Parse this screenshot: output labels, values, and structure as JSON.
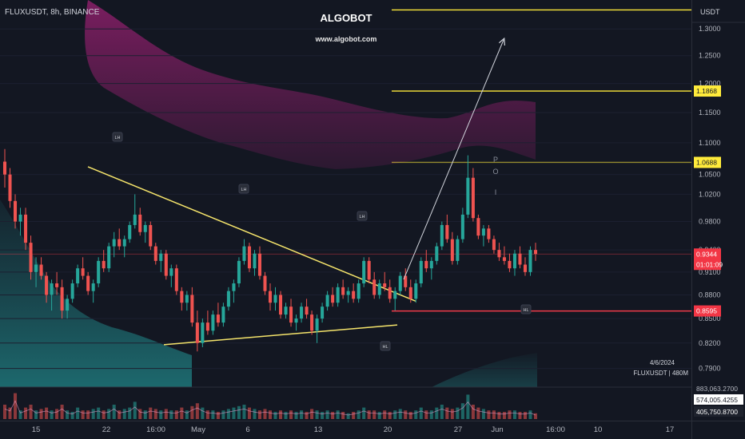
{
  "header": {
    "symbol_label": "FLUXUSDT, 8h, BINANCE",
    "brand_title": "ALGOBOT",
    "brand_url": "www.algobot.com",
    "currency": "USDT"
  },
  "colors": {
    "background": "#131722",
    "bull": "#26a69a",
    "bear": "#ef5350",
    "trendline": "#f5e46b",
    "resistance_line": "#ffe93b",
    "support_line": "#ef3b4a",
    "upper_band": "#8c1f6a",
    "lower_band": "#1f6f73",
    "projection_arrow": "#d1d4dc",
    "volume_ma": "#f7a6d8"
  },
  "chart_data": {
    "type": "candlestick",
    "timeframe": "8h",
    "yscale": "log",
    "ylim": [
      0.775,
      1.35
    ],
    "price_ticks": [
      "1.3000",
      "1.2500",
      "1.2000",
      "1.1500",
      "1.1000",
      "1.0500",
      "1.0200",
      "0.9800",
      "0.9400",
      "0.9100",
      "0.8800",
      "0.8500",
      "0.8200",
      "0.7900"
    ],
    "time_ticks": [
      "15",
      "22",
      "16:00",
      "May",
      "6",
      "13",
      "20",
      "27",
      "Jun",
      "16:00",
      "10",
      "17"
    ],
    "price_labels": [
      {
        "value": "1.1868",
        "style": "yellow"
      },
      {
        "value": "1.0688",
        "style": "yellow"
      },
      {
        "value": "0.9344",
        "style": "red"
      },
      {
        "value": "01:01:09",
        "style": "red"
      },
      {
        "value": "0.8595",
        "style": "red"
      }
    ],
    "horizontal_levels": [
      {
        "price": 1.3368,
        "color": "yellow"
      },
      {
        "price": 1.1868,
        "color": "yellow"
      },
      {
        "price": 1.0688,
        "color": "yellow"
      },
      {
        "price": 0.8595,
        "color": "red"
      },
      {
        "price": 0.9344,
        "color": "red"
      }
    ],
    "trendlines": [
      {
        "from": [
          0.0,
          1.062
        ],
        "to": [
          0.62,
          0.872
        ]
      },
      {
        "from": [
          0.16,
          0.818
        ],
        "to": [
          0.63,
          0.842
        ]
      }
    ],
    "pivot_markers": [
      "LH",
      "LH",
      "LH",
      "HL",
      "HL"
    ],
    "vertical_annotation": [
      "P",
      "O",
      "I"
    ],
    "date_stamp": "4/6/2024",
    "volume_label": "FLUXUSDT | 480M",
    "volume_labels": [
      "883,063.2700",
      "574,005.4255",
      "405,750.8700"
    ],
    "candles": [
      [
        1.07,
        1.09,
        1.03,
        1.05
      ],
      [
        1.05,
        1.06,
        1.0,
        1.01
      ],
      [
        1.01,
        1.02,
        0.97,
        0.98
      ],
      [
        0.98,
        1.0,
        0.96,
        0.99
      ],
      [
        0.99,
        1.0,
        0.94,
        0.95
      ],
      [
        0.95,
        0.96,
        0.9,
        0.91
      ],
      [
        0.91,
        0.93,
        0.89,
        0.92
      ],
      [
        0.92,
        0.93,
        0.9,
        0.905
      ],
      [
        0.905,
        0.91,
        0.87,
        0.88
      ],
      [
        0.88,
        0.9,
        0.86,
        0.895
      ],
      [
        0.895,
        0.91,
        0.88,
        0.89
      ],
      [
        0.89,
        0.9,
        0.85,
        0.86
      ],
      [
        0.86,
        0.88,
        0.85,
        0.875
      ],
      [
        0.875,
        0.9,
        0.87,
        0.895
      ],
      [
        0.895,
        0.92,
        0.89,
        0.915
      ],
      [
        0.915,
        0.93,
        0.9,
        0.905
      ],
      [
        0.905,
        0.91,
        0.88,
        0.885
      ],
      [
        0.885,
        0.9,
        0.87,
        0.895
      ],
      [
        0.895,
        0.93,
        0.89,
        0.925
      ],
      [
        0.925,
        0.94,
        0.91,
        0.915
      ],
      [
        0.915,
        0.95,
        0.91,
        0.945
      ],
      [
        0.945,
        0.965,
        0.93,
        0.955
      ],
      [
        0.955,
        0.97,
        0.94,
        0.945
      ],
      [
        0.945,
        0.96,
        0.93,
        0.955
      ],
      [
        0.955,
        0.98,
        0.95,
        0.975
      ],
      [
        0.975,
        1.02,
        0.97,
        0.99
      ],
      [
        0.99,
        1.0,
        0.96,
        0.965
      ],
      [
        0.965,
        0.98,
        0.95,
        0.975
      ],
      [
        0.975,
        0.98,
        0.94,
        0.945
      ],
      [
        0.945,
        0.95,
        0.92,
        0.925
      ],
      [
        0.925,
        0.94,
        0.91,
        0.935
      ],
      [
        0.935,
        0.94,
        0.9,
        0.905
      ],
      [
        0.905,
        0.92,
        0.89,
        0.915
      ],
      [
        0.915,
        0.92,
        0.88,
        0.885
      ],
      [
        0.885,
        0.89,
        0.86,
        0.87
      ],
      [
        0.87,
        0.885,
        0.86,
        0.88
      ],
      [
        0.88,
        0.89,
        0.84,
        0.845
      ],
      [
        0.845,
        0.86,
        0.81,
        0.82
      ],
      [
        0.82,
        0.85,
        0.815,
        0.845
      ],
      [
        0.845,
        0.86,
        0.83,
        0.835
      ],
      [
        0.835,
        0.86,
        0.83,
        0.855
      ],
      [
        0.855,
        0.87,
        0.84,
        0.845
      ],
      [
        0.845,
        0.87,
        0.84,
        0.865
      ],
      [
        0.865,
        0.89,
        0.86,
        0.885
      ],
      [
        0.885,
        0.9,
        0.87,
        0.895
      ],
      [
        0.895,
        0.93,
        0.89,
        0.925
      ],
      [
        0.925,
        0.955,
        0.92,
        0.945
      ],
      [
        0.945,
        0.95,
        0.91,
        0.915
      ],
      [
        0.915,
        0.94,
        0.905,
        0.935
      ],
      [
        0.935,
        0.945,
        0.9,
        0.905
      ],
      [
        0.905,
        0.91,
        0.88,
        0.885
      ],
      [
        0.885,
        0.895,
        0.86,
        0.87
      ],
      [
        0.87,
        0.89,
        0.86,
        0.88
      ],
      [
        0.88,
        0.885,
        0.85,
        0.855
      ],
      [
        0.855,
        0.87,
        0.85,
        0.865
      ],
      [
        0.865,
        0.875,
        0.84,
        0.845
      ],
      [
        0.845,
        0.855,
        0.835,
        0.85
      ],
      [
        0.85,
        0.87,
        0.845,
        0.865
      ],
      [
        0.865,
        0.875,
        0.85,
        0.855
      ],
      [
        0.855,
        0.86,
        0.83,
        0.835
      ],
      [
        0.835,
        0.855,
        0.82,
        0.85
      ],
      [
        0.85,
        0.87,
        0.845,
        0.865
      ],
      [
        0.865,
        0.885,
        0.86,
        0.88
      ],
      [
        0.88,
        0.89,
        0.865,
        0.87
      ],
      [
        0.87,
        0.895,
        0.865,
        0.89
      ],
      [
        0.89,
        0.9,
        0.875,
        0.88
      ],
      [
        0.88,
        0.89,
        0.87,
        0.885
      ],
      [
        0.885,
        0.895,
        0.87,
        0.875
      ],
      [
        0.875,
        0.9,
        0.87,
        0.895
      ],
      [
        0.895,
        0.93,
        0.89,
        0.925
      ],
      [
        0.925,
        0.93,
        0.895,
        0.9
      ],
      [
        0.9,
        0.91,
        0.875,
        0.88
      ],
      [
        0.88,
        0.9,
        0.875,
        0.895
      ],
      [
        0.895,
        0.91,
        0.885,
        0.89
      ],
      [
        0.89,
        0.9,
        0.87,
        0.875
      ],
      [
        0.875,
        0.89,
        0.86,
        0.885
      ],
      [
        0.885,
        0.91,
        0.88,
        0.905
      ],
      [
        0.905,
        0.915,
        0.885,
        0.89
      ],
      [
        0.89,
        0.9,
        0.87,
        0.875
      ],
      [
        0.875,
        0.9,
        0.87,
        0.895
      ],
      [
        0.895,
        0.93,
        0.89,
        0.925
      ],
      [
        0.925,
        0.94,
        0.91,
        0.915
      ],
      [
        0.915,
        0.93,
        0.9,
        0.925
      ],
      [
        0.925,
        0.95,
        0.92,
        0.945
      ],
      [
        0.945,
        0.98,
        0.94,
        0.975
      ],
      [
        0.975,
        0.99,
        0.95,
        0.955
      ],
      [
        0.955,
        0.965,
        0.92,
        0.925
      ],
      [
        0.925,
        0.96,
        0.92,
        0.955
      ],
      [
        0.955,
        1.0,
        0.95,
        0.99
      ],
      [
        0.99,
        1.08,
        0.985,
        1.045
      ],
      [
        1.045,
        1.06,
        0.98,
        0.985
      ],
      [
        0.985,
        0.99,
        0.955,
        0.96
      ],
      [
        0.96,
        0.975,
        0.945,
        0.97
      ],
      [
        0.97,
        0.975,
        0.95,
        0.955
      ],
      [
        0.955,
        0.96,
        0.935,
        0.94
      ],
      [
        0.94,
        0.95,
        0.925,
        0.93
      ],
      [
        0.93,
        0.945,
        0.92,
        0.925
      ],
      [
        0.925,
        0.935,
        0.91,
        0.915
      ],
      [
        0.915,
        0.94,
        0.905,
        0.935
      ],
      [
        0.935,
        0.945,
        0.915,
        0.92
      ],
      [
        0.92,
        0.93,
        0.905,
        0.91
      ],
      [
        0.91,
        0.945,
        0.905,
        0.94
      ],
      [
        0.94,
        0.95,
        0.925,
        0.9344
      ]
    ],
    "volumes": [
      0.5,
      0.4,
      0.9,
      0.3,
      0.4,
      0.5,
      0.3,
      0.35,
      0.4,
      0.3,
      0.35,
      0.5,
      0.3,
      0.25,
      0.4,
      0.3,
      0.3,
      0.35,
      0.4,
      0.3,
      0.35,
      0.5,
      0.3,
      0.35,
      0.4,
      0.6,
      0.35,
      0.3,
      0.4,
      0.35,
      0.3,
      0.35,
      0.3,
      0.3,
      0.4,
      0.3,
      0.45,
      0.55,
      0.4,
      0.3,
      0.3,
      0.25,
      0.3,
      0.35,
      0.4,
      0.45,
      0.5,
      0.4,
      0.35,
      0.3,
      0.35,
      0.3,
      0.25,
      0.3,
      0.25,
      0.3,
      0.25,
      0.3,
      0.25,
      0.35,
      0.3,
      0.25,
      0.3,
      0.25,
      0.3,
      0.25,
      0.2,
      0.25,
      0.3,
      0.4,
      0.3,
      0.3,
      0.25,
      0.3,
      0.25,
      0.3,
      0.35,
      0.3,
      0.25,
      0.3,
      0.4,
      0.3,
      0.3,
      0.4,
      0.5,
      0.4,
      0.35,
      0.4,
      0.55,
      0.85,
      0.5,
      0.4,
      0.35,
      0.3,
      0.3,
      0.25,
      0.25,
      0.3,
      0.3,
      0.25,
      0.25,
      0.3,
      0.2
    ]
  }
}
